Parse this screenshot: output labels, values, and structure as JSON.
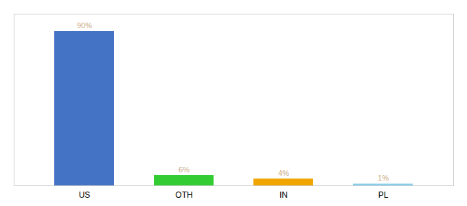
{
  "chart_data": {
    "type": "bar",
    "categories": [
      "US",
      "OTH",
      "IN",
      "PL"
    ],
    "values": [
      90,
      6,
      4,
      1
    ],
    "value_labels": [
      "90%",
      "6%",
      "4%",
      "1%"
    ],
    "colors": [
      "#4472c4",
      "#33cc33",
      "#f0a500",
      "#87ceeb"
    ],
    "ylim": [
      0,
      100
    ],
    "data_labels": true,
    "tick_labels": "x",
    "grid": false
  }
}
